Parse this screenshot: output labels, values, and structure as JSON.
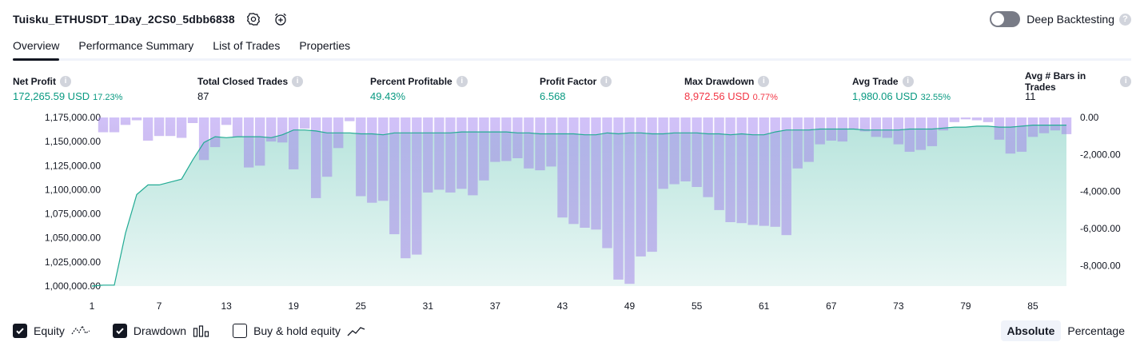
{
  "header": {
    "title": "Tuisku_ETHUSDT_1Day_2CS0_5dbb6838",
    "deep_backtesting_label": "Deep Backtesting"
  },
  "tabs": [
    {
      "label": "Overview",
      "active": true
    },
    {
      "label": "Performance Summary"
    },
    {
      "label": "List of Trades"
    },
    {
      "label": "Properties"
    }
  ],
  "stats": {
    "net_profit": {
      "label": "Net Profit",
      "value": "172,265.59 USD",
      "pct": "17.23%"
    },
    "total_closed_trades": {
      "label": "Total Closed Trades",
      "value": "87"
    },
    "percent_profitable": {
      "label": "Percent Profitable",
      "value": "49.43%"
    },
    "profit_factor": {
      "label": "Profit Factor",
      "value": "6.568"
    },
    "max_drawdown": {
      "label": "Max Drawdown",
      "value": "8,972.56 USD",
      "pct": "0.77%"
    },
    "avg_trade": {
      "label": "Avg Trade",
      "value": "1,980.06 USD",
      "pct": "32.55%"
    },
    "avg_bars": {
      "label": "Avg # Bars in Trades",
      "value": "11"
    }
  },
  "legend": {
    "equity": "Equity",
    "drawdown": "Drawdown",
    "buy_hold": "Buy & hold equity"
  },
  "modes": {
    "absolute": "Absolute",
    "percentage": "Percentage"
  },
  "colors": {
    "equity_line": "#22ab94",
    "drawdown_top": "#d1c4e9",
    "drawdown_bottom": "#b2b5e6",
    "positive": "#089981",
    "negative": "#f23645"
  },
  "chart_data": {
    "type": "area",
    "left_axis": {
      "ylim": [
        1000000,
        1175000
      ],
      "ticks": [
        "1,175,000.00",
        "1,150,000.00",
        "1,125,000.00",
        "1,100,000.00",
        "1,075,000.00",
        "1,050,000.00",
        "1,025,000.00",
        "1,000,000.00"
      ]
    },
    "right_axis": {
      "ylim": [
        -9100,
        0
      ],
      "ticks": [
        "0.00",
        "-2,000.00",
        "-4,000.00",
        "-6,000.00",
        "-8,000.00"
      ]
    },
    "x_ticks": [
      "1",
      "7",
      "13",
      "19",
      "25",
      "31",
      "37",
      "43",
      "49",
      "55",
      "61",
      "67",
      "73",
      "79",
      "85"
    ],
    "x_range": [
      1,
      88
    ],
    "series": [
      {
        "name": "Equity",
        "type": "line",
        "values": [
          1000000,
          1001000,
          1001000,
          1055000,
          1095000,
          1105000,
          1105000,
          1108000,
          1111000,
          1131000,
          1149000,
          1155000,
          1154000,
          1155000,
          1155000,
          1155000,
          1154000,
          1157000,
          1162000,
          1162000,
          1161000,
          1159000,
          1159000,
          1159000,
          1158000,
          1158000,
          1157000,
          1159000,
          1159000,
          1159000,
          1159000,
          1159000,
          1159000,
          1160000,
          1160000,
          1160000,
          1160000,
          1160000,
          1159000,
          1159000,
          1158000,
          1158000,
          1158000,
          1158000,
          1157000,
          1157000,
          1159000,
          1158000,
          1159000,
          1159000,
          1158000,
          1158000,
          1159000,
          1159000,
          1159000,
          1158000,
          1158000,
          1157000,
          1158000,
          1157000,
          1157000,
          1160000,
          1162000,
          1162000,
          1162000,
          1163000,
          1163000,
          1163000,
          1163000,
          1162000,
          1162000,
          1162000,
          1162000,
          1163000,
          1163000,
          1163000,
          1164000,
          1165000,
          1165000,
          1166000,
          1166000,
          1165000,
          1165000,
          1166000,
          1167000,
          1167000,
          1167000,
          1167000
        ]
      },
      {
        "name": "Drawdown",
        "type": "bar",
        "values": [
          0,
          -800,
          -800,
          -400,
          -150,
          -1250,
          -1000,
          -1000,
          -1100,
          -300,
          -2300,
          -1600,
          -400,
          -1050,
          -2700,
          -2600,
          -1300,
          -1350,
          -2800,
          -600,
          -4350,
          -3200,
          -1650,
          -200,
          -4250,
          -4600,
          -4500,
          -6300,
          -7600,
          -7400,
          -4050,
          -3900,
          -4050,
          -3850,
          -4200,
          -3400,
          -2400,
          -2350,
          -2200,
          -2750,
          -2850,
          -2650,
          -5400,
          -5750,
          -5950,
          -6050,
          -7050,
          -8750,
          -8980,
          -7500,
          -7250,
          -3850,
          -3600,
          -3450,
          -3750,
          -4300,
          -5000,
          -5650,
          -5700,
          -5800,
          -5850,
          -5900,
          -6350,
          -2750,
          -2400,
          -1450,
          -1250,
          -1300,
          -650,
          -750,
          -1050,
          -1100,
          -1450,
          -1850,
          -1750,
          -1550,
          -700,
          -250,
          -100,
          -150,
          -250,
          -1200,
          -1950,
          -1850,
          -1050,
          -850,
          -700,
          -900
        ]
      }
    ]
  }
}
